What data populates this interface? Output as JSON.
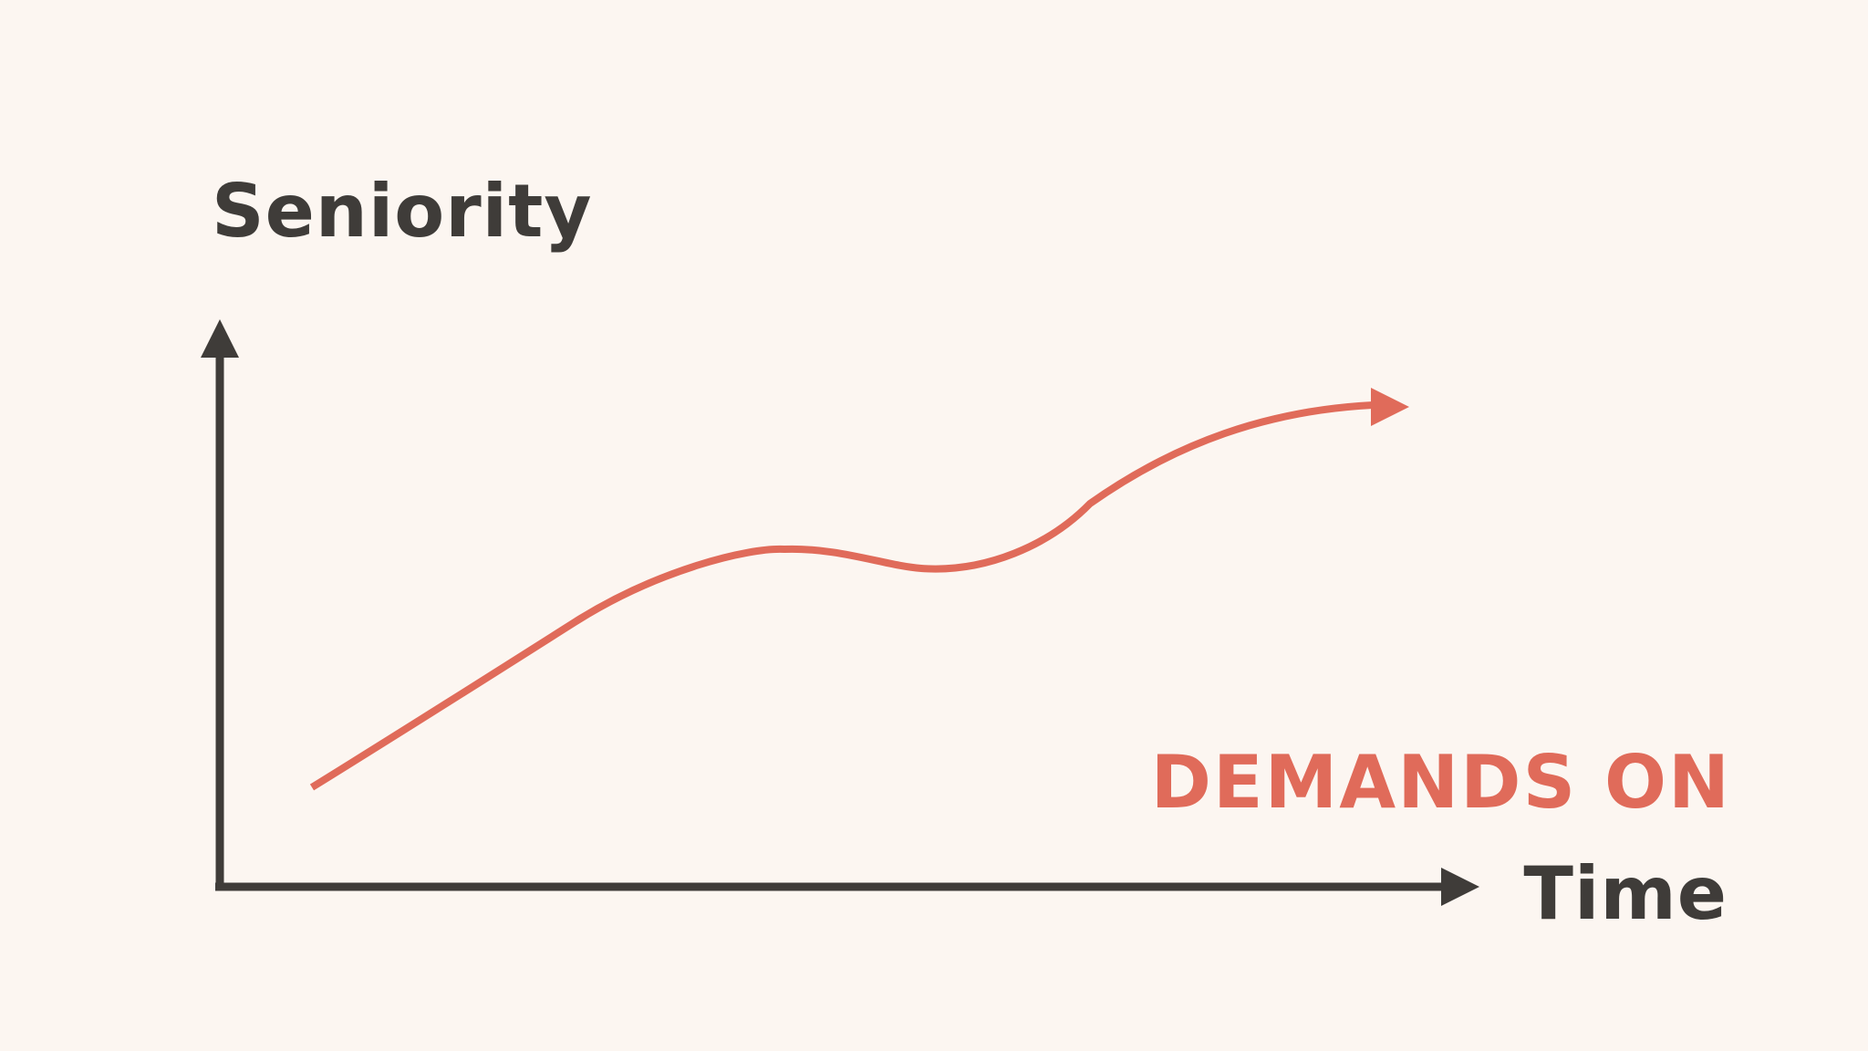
{
  "y_axis_label": "Seniority",
  "x_axis_label": "Time",
  "curve_label": "DEMANDS ON",
  "colors": {
    "background": "#fcf6f1",
    "axis": "#3f3c39",
    "curve": "#e06b5a"
  }
}
